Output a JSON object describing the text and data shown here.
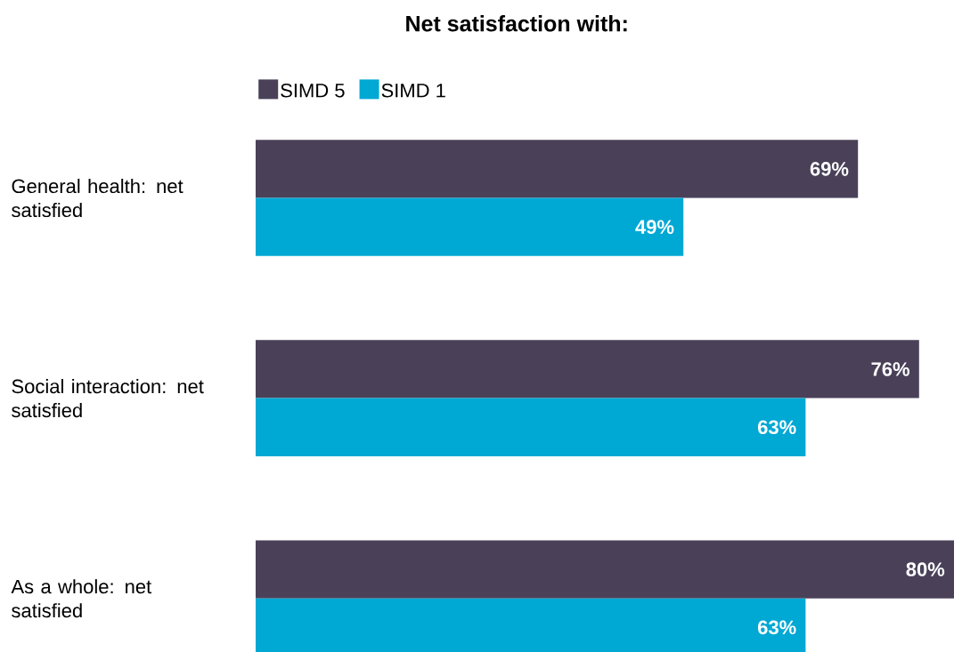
{
  "chart_data": {
    "type": "bar",
    "orientation": "horizontal",
    "title": "Net satisfaction with:",
    "categories": [
      "General health: net satisfied",
      "Social interaction: net satisfied",
      "As a whole: net satisfied"
    ],
    "series": [
      {
        "name": "SIMD 5",
        "color": "#4a4159",
        "values": [
          69,
          76,
          80
        ],
        "value_labels": [
          "69%",
          "76%",
          "80%"
        ]
      },
      {
        "name": "SIMD 1",
        "color": "#00a8d4",
        "values": [
          49,
          63,
          63
        ],
        "value_labels": [
          "49%",
          "63%",
          "63%"
        ]
      }
    ],
    "legend": "top left"
  }
}
